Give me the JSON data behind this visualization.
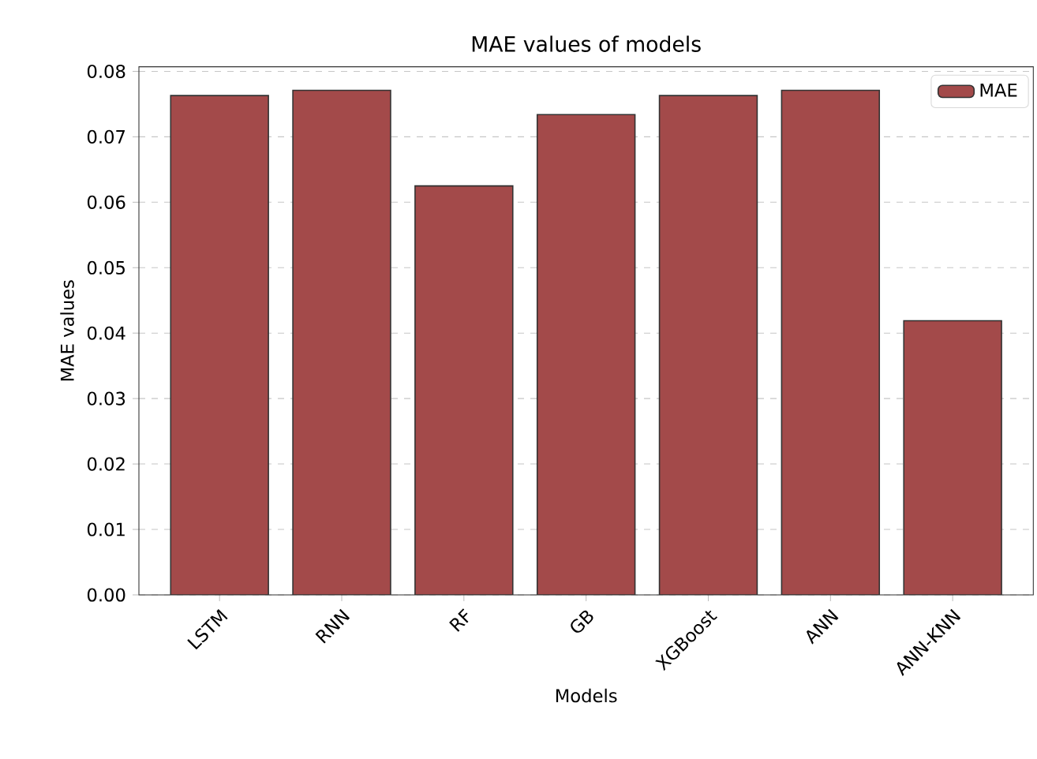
{
  "chart_data": {
    "type": "bar",
    "title": "MAE values of models",
    "xlabel": "Models",
    "ylabel": "MAE values",
    "categories": [
      "LSTM",
      "RNN",
      "RF",
      "GB",
      "XGBoost",
      "ANN",
      "ANN-KNN"
    ],
    "series": [
      {
        "name": "MAE",
        "color": "#a34a4a",
        "values": [
          0.0763,
          0.0771,
          0.0625,
          0.0734,
          0.0763,
          0.0771,
          0.0419
        ]
      }
    ],
    "ylim": [
      0,
      0.0807
    ],
    "yticks": [
      {
        "value": 0,
        "label": "0.00"
      },
      {
        "value": 0.01,
        "label": "0.01"
      },
      {
        "value": 0.02,
        "label": "0.02"
      },
      {
        "value": 0.03,
        "label": "0.03"
      },
      {
        "value": 0.04,
        "label": "0.04"
      },
      {
        "value": 0.05,
        "label": "0.05"
      },
      {
        "value": 0.06,
        "label": "0.06"
      },
      {
        "value": 0.07,
        "label": "0.07"
      },
      {
        "value": 0.08,
        "label": "0.08"
      }
    ],
    "grid": "y",
    "legend": "top right"
  }
}
